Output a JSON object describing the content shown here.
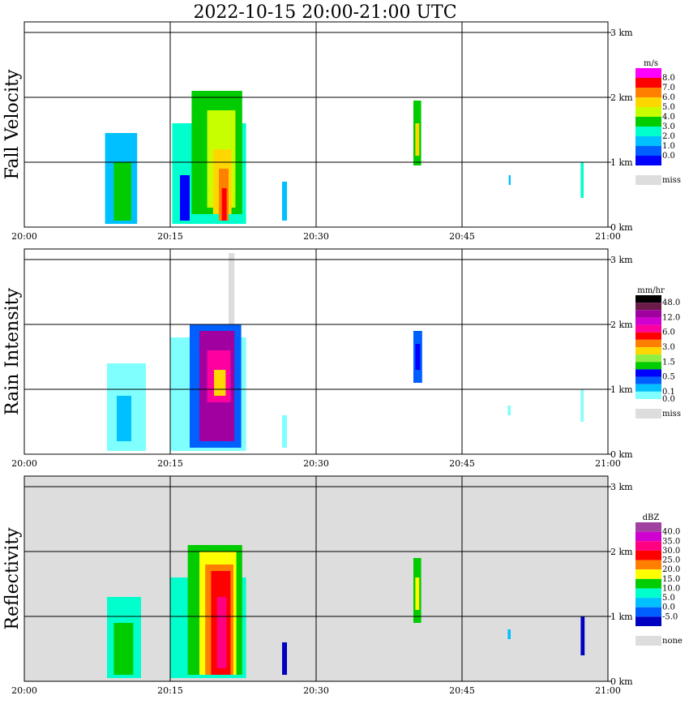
{
  "title": "2022-10-15   20:00-21:00 UTC",
  "x_ticks": [
    "20:00",
    "20:15",
    "20:30",
    "20:45",
    "21:00"
  ],
  "y_ticks": [
    "0 km",
    "1 km",
    "2 km",
    "3 km"
  ],
  "chart_data": [
    {
      "type": "heatmap",
      "ylabel": "Fall Velocity",
      "colorbar": {
        "unit": "m/s",
        "labels": [
          "8.0",
          "7.0",
          "6.0",
          "5.0",
          "4.0",
          "3.0",
          "2.0",
          "1.0",
          "0.0"
        ],
        "colors": [
          "#ff00ff",
          "#ff0000",
          "#ff8000",
          "#ffd700",
          "#c8ff00",
          "#00cc00",
          "#00ffcc",
          "#00c0ff",
          "#0060ff",
          "#0000ff"
        ],
        "extra": {
          "label": "miss",
          "color": "#dddddd"
        }
      },
      "background": "#ffffff",
      "x_range": [
        "20:00",
        "21:00"
      ],
      "y_range_km": [
        0,
        3.1
      ],
      "cells": [
        {
          "t0": 8.3,
          "t1": 11.6,
          "h0": 0.05,
          "h1": 1.45,
          "color": "#00c0ff"
        },
        {
          "t0": 9.2,
          "t1": 11.0,
          "h0": 0.1,
          "h1": 1.0,
          "color": "#00cc00"
        },
        {
          "t0": 15.2,
          "t1": 22.8,
          "h0": 0.05,
          "h1": 1.6,
          "color": "#00ffcc"
        },
        {
          "t0": 17.2,
          "t1": 22.4,
          "h0": 0.2,
          "h1": 2.1,
          "color": "#00cc00"
        },
        {
          "t0": 18.8,
          "t1": 21.7,
          "h0": 0.3,
          "h1": 1.8,
          "color": "#c8ff00"
        },
        {
          "t0": 19.4,
          "t1": 21.3,
          "h0": 0.2,
          "h1": 1.2,
          "color": "#ffd700"
        },
        {
          "t0": 20.0,
          "t1": 21.0,
          "h0": 0.1,
          "h1": 0.9,
          "color": "#ff8000"
        },
        {
          "t0": 20.3,
          "t1": 20.8,
          "h0": 0.1,
          "h1": 0.6,
          "color": "#ff0000"
        },
        {
          "t0": 16.0,
          "t1": 17.0,
          "h0": 0.1,
          "h1": 0.8,
          "color": "#0000ff"
        },
        {
          "t0": 26.5,
          "t1": 27.0,
          "h0": 0.1,
          "h1": 0.7,
          "color": "#00c0ff"
        },
        {
          "t0": 40.0,
          "t1": 40.8,
          "h0": 0.95,
          "h1": 1.95,
          "color": "#00cc00"
        },
        {
          "t0": 40.2,
          "t1": 40.6,
          "h0": 1.1,
          "h1": 1.6,
          "color": "#ffd700"
        },
        {
          "t0": 49.8,
          "t1": 50.0,
          "h0": 0.65,
          "h1": 0.8,
          "color": "#00c0ff"
        },
        {
          "t0": 57.2,
          "t1": 57.5,
          "h0": 0.45,
          "h1": 1.0,
          "color": "#00ffcc"
        }
      ]
    },
    {
      "type": "heatmap",
      "ylabel": "Rain Intensity",
      "colorbar": {
        "unit": "mm/hr",
        "labels": [
          "48.0",
          "",
          "12.0",
          "",
          "6.0",
          "",
          "3.0",
          "",
          "1.5",
          "",
          "0.5",
          "",
          "0.1",
          "0.0"
        ],
        "colors": [
          "#000000",
          "#6b1a4a",
          "#a000a0",
          "#d000d0",
          "#ff00a0",
          "#ff0000",
          "#ff8000",
          "#ffd700",
          "#90ee40",
          "#00cc00",
          "#0000ff",
          "#0060ff",
          "#00c0ff",
          "#80ffff"
        ],
        "extra": {
          "label": "miss",
          "color": "#dddddd"
        }
      },
      "background": "#ffffff",
      "x_range": [
        "20:00",
        "21:00"
      ],
      "y_range_km": [
        0,
        3.1
      ],
      "cells": [
        {
          "t0": 21.0,
          "t1": 21.6,
          "h0": 1.4,
          "h1": 3.1,
          "color": "#dddddd"
        },
        {
          "t0": 8.5,
          "t1": 12.5,
          "h0": 0.05,
          "h1": 1.4,
          "color": "#80ffff"
        },
        {
          "t0": 9.5,
          "t1": 11.0,
          "h0": 0.2,
          "h1": 0.9,
          "color": "#00c0ff"
        },
        {
          "t0": 15.0,
          "t1": 22.8,
          "h0": 0.05,
          "h1": 1.8,
          "color": "#80ffff"
        },
        {
          "t0": 17.0,
          "t1": 22.3,
          "h0": 0.1,
          "h1": 2.0,
          "color": "#0060ff"
        },
        {
          "t0": 18.0,
          "t1": 21.6,
          "h0": 0.2,
          "h1": 1.9,
          "color": "#a000a0"
        },
        {
          "t0": 18.8,
          "t1": 21.2,
          "h0": 0.8,
          "h1": 1.6,
          "color": "#ff00a0"
        },
        {
          "t0": 19.5,
          "t1": 20.7,
          "h0": 0.9,
          "h1": 1.3,
          "color": "#ffd700"
        },
        {
          "t0": 26.5,
          "t1": 27.0,
          "h0": 0.1,
          "h1": 0.6,
          "color": "#80ffff"
        },
        {
          "t0": 40.0,
          "t1": 40.9,
          "h0": 1.1,
          "h1": 1.9,
          "color": "#0060ff"
        },
        {
          "t0": 40.2,
          "t1": 40.7,
          "h0": 1.3,
          "h1": 1.7,
          "color": "#0000ff"
        },
        {
          "t0": 49.7,
          "t1": 50.0,
          "h0": 0.6,
          "h1": 0.75,
          "color": "#80ffff"
        },
        {
          "t0": 57.2,
          "t1": 57.5,
          "h0": 0.5,
          "h1": 1.0,
          "color": "#80ffff"
        }
      ]
    },
    {
      "type": "heatmap",
      "ylabel": "Reflectivity",
      "colorbar": {
        "unit": "dBZ",
        "labels": [
          "40.0",
          "35.0",
          "30.0",
          "25.0",
          "20.0",
          "15.0",
          "10.0",
          "5.0",
          "0.0",
          "-5.0"
        ],
        "colors": [
          "#a040a0",
          "#d000d0",
          "#ff0080",
          "#ff0000",
          "#ff8000",
          "#ffff00",
          "#00cc00",
          "#00ffcc",
          "#00c0ff",
          "#0060ff",
          "#0000c0"
        ],
        "extra": {
          "label": "none",
          "color": "#dddddd"
        }
      },
      "background": "#dddddd",
      "x_range": [
        "20:00",
        "21:00"
      ],
      "y_range_km": [
        0,
        3.1
      ],
      "cells": [
        {
          "t0": 8.5,
          "t1": 12.0,
          "h0": 0.05,
          "h1": 1.3,
          "color": "#00ffcc"
        },
        {
          "t0": 9.2,
          "t1": 11.2,
          "h0": 0.1,
          "h1": 0.9,
          "color": "#00cc00"
        },
        {
          "t0": 15.0,
          "t1": 22.8,
          "h0": 0.05,
          "h1": 1.6,
          "color": "#00ffcc"
        },
        {
          "t0": 16.8,
          "t1": 22.4,
          "h0": 0.1,
          "h1": 2.1,
          "color": "#00cc00"
        },
        {
          "t0": 18.0,
          "t1": 21.8,
          "h0": 0.1,
          "h1": 2.0,
          "color": "#ffff00"
        },
        {
          "t0": 18.6,
          "t1": 21.5,
          "h0": 0.1,
          "h1": 1.8,
          "color": "#ff8000"
        },
        {
          "t0": 19.2,
          "t1": 21.2,
          "h0": 0.1,
          "h1": 1.7,
          "color": "#ff0000"
        },
        {
          "t0": 19.8,
          "t1": 20.8,
          "h0": 0.2,
          "h1": 1.3,
          "color": "#ff0080"
        },
        {
          "t0": 26.5,
          "t1": 27.0,
          "h0": 0.1,
          "h1": 0.6,
          "color": "#0000c0"
        },
        {
          "t0": 40.0,
          "t1": 40.8,
          "h0": 0.9,
          "h1": 1.9,
          "color": "#00cc00"
        },
        {
          "t0": 40.2,
          "t1": 40.6,
          "h0": 1.1,
          "h1": 1.6,
          "color": "#ffff00"
        },
        {
          "t0": 49.7,
          "t1": 50.0,
          "h0": 0.65,
          "h1": 0.8,
          "color": "#00c0ff"
        },
        {
          "t0": 57.2,
          "t1": 57.6,
          "h0": 0.4,
          "h1": 1.0,
          "color": "#0000c0"
        }
      ]
    }
  ]
}
